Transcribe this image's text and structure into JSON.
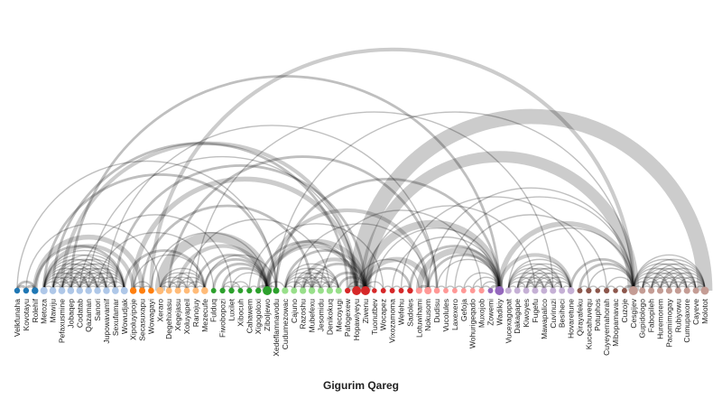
{
  "title": "Gigurim Qareg",
  "colors": {
    "arc": "#000000",
    "label": "#222222"
  },
  "nodes": [
    {
      "label": "Velkfunaha",
      "color": "#1f77b4"
    },
    {
      "label": "Kovotayu",
      "color": "#1f77b4"
    },
    {
      "label": "Rolehif",
      "color": "#1f77b4"
    },
    {
      "label": "Metoza",
      "color": "#aec7e8"
    },
    {
      "label": "Mawiju",
      "color": "#aec7e8"
    },
    {
      "label": "Pefaxusmine",
      "color": "#aec7e8"
    },
    {
      "label": "Jobaqep",
      "color": "#aec7e8"
    },
    {
      "label": "Codatab",
      "color": "#aec7e8"
    },
    {
      "label": "Qazaman",
      "color": "#aec7e8"
    },
    {
      "label": "Sanori",
      "color": "#aec7e8"
    },
    {
      "label": "Jupowavamif",
      "color": "#aec7e8"
    },
    {
      "label": "Sexufamar",
      "color": "#aec7e8"
    },
    {
      "label": "Wowudjak",
      "color": "#aec7e8"
    },
    {
      "label": "Xipoluyipoje",
      "color": "#ff7f0e"
    },
    {
      "label": "Secasuxapu",
      "color": "#ff7f0e"
    },
    {
      "label": "Wowagayi",
      "color": "#ff7f0e"
    },
    {
      "label": "Xeraro",
      "color": "#ffbb78"
    },
    {
      "label": "Degehixasu",
      "color": "#ffbb78"
    },
    {
      "label": "Xegejasu",
      "color": "#ffbb78"
    },
    {
      "label": "Xoluyapeil",
      "color": "#ffbb78"
    },
    {
      "label": "Ranojuy",
      "color": "#ffbb78"
    },
    {
      "label": "Mezecufe",
      "color": "#ffbb78"
    },
    {
      "label": "Fulduq",
      "color": "#2ca02c"
    },
    {
      "label": "Fiwobopozi",
      "color": "#2ca02c"
    },
    {
      "label": "Luxilet",
      "color": "#2ca02c"
    },
    {
      "label": "Xibocuh",
      "color": "#2ca02c"
    },
    {
      "label": "Cahawem",
      "color": "#2ca02c"
    },
    {
      "label": "Xigogoloxi",
      "color": "#2ca02c"
    },
    {
      "label": "Ziboljewo",
      "color": "#2ca02c"
    },
    {
      "label": "Xedeflamnavodu",
      "color": "#2ca02c"
    },
    {
      "label": "Cudumezowac",
      "color": "#98df8a"
    },
    {
      "label": "Cajuno",
      "color": "#98df8a"
    },
    {
      "label": "Razoshu",
      "color": "#98df8a"
    },
    {
      "label": "Mubefexu",
      "color": "#98df8a"
    },
    {
      "label": "Jesomidu",
      "color": "#98df8a"
    },
    {
      "label": "Denikokuq",
      "color": "#98df8a"
    },
    {
      "label": "Mecoyugi",
      "color": "#98df8a"
    },
    {
      "label": "Pafogexew",
      "color": "#d62728"
    },
    {
      "label": "Hopawiyeyu",
      "color": "#d62728"
    },
    {
      "label": "Ziwenu",
      "color": "#d62728"
    },
    {
      "label": "Tuonutbev",
      "color": "#d62728"
    },
    {
      "label": "Wocapez",
      "color": "#d62728"
    },
    {
      "label": "Vixozamoma",
      "color": "#d62728"
    },
    {
      "label": "Wefehu",
      "color": "#d62728"
    },
    {
      "label": "Sadoles",
      "color": "#d62728"
    },
    {
      "label": "Lotuwihami",
      "color": "#ff9896"
    },
    {
      "label": "Nokusom",
      "color": "#ff9896"
    },
    {
      "label": "Dudisu",
      "color": "#ff9896"
    },
    {
      "label": "Vucolules",
      "color": "#ff9896"
    },
    {
      "label": "Laxexero",
      "color": "#ff9896"
    },
    {
      "label": "Gefoja",
      "color": "#ff9896"
    },
    {
      "label": "Wohurigeqado",
      "color": "#ff9896"
    },
    {
      "label": "Muxojob",
      "color": "#ff9896"
    },
    {
      "label": "Zowemi",
      "color": "#9467bd"
    },
    {
      "label": "Wadikiy",
      "color": "#9467bd"
    },
    {
      "label": "Vucexagopat",
      "color": "#c5b0d5"
    },
    {
      "label": "Dakagape",
      "color": "#c5b0d5"
    },
    {
      "label": "Kiwoyes",
      "color": "#c5b0d5"
    },
    {
      "label": "Fugefu",
      "color": "#c5b0d5"
    },
    {
      "label": "Mawapalico",
      "color": "#c5b0d5"
    },
    {
      "label": "Cuvinuzi",
      "color": "#c5b0d5"
    },
    {
      "label": "Besiheci",
      "color": "#c5b0d5"
    },
    {
      "label": "Hovaretune",
      "color": "#c5b0d5"
    },
    {
      "label": "Qirayafeku",
      "color": "#8c564b"
    },
    {
      "label": "Kucecahuvequ",
      "color": "#8c564b"
    },
    {
      "label": "Potuphos",
      "color": "#8c564b"
    },
    {
      "label": "Cuyeyernahorah",
      "color": "#8c564b"
    },
    {
      "label": "Mibopamavac",
      "color": "#8c564b"
    },
    {
      "label": "Cuzoje",
      "color": "#8c564b"
    },
    {
      "label": "Cesgijev",
      "color": "#c49c94"
    },
    {
      "label": "Gupidologo",
      "color": "#c49c94"
    },
    {
      "label": "Fabopileh",
      "color": "#c49c94"
    },
    {
      "label": "Huremorem",
      "color": "#c49c94"
    },
    {
      "label": "Pacomimogay",
      "color": "#c49c94"
    },
    {
      "label": "Rubiyowu",
      "color": "#c49c94"
    },
    {
      "label": "Cumupaxore",
      "color": "#c49c94"
    },
    {
      "label": "Cayeve",
      "color": "#c49c94"
    },
    {
      "label": "Molotot",
      "color": "#c49c94"
    }
  ],
  "links": [
    [
      0,
      1,
      2
    ],
    [
      0,
      2,
      2
    ],
    [
      1,
      2,
      2
    ],
    [
      3,
      4,
      1
    ],
    [
      3,
      5,
      1
    ],
    [
      3,
      6,
      1
    ],
    [
      3,
      7,
      1
    ],
    [
      3,
      8,
      1
    ],
    [
      3,
      9,
      1
    ],
    [
      3,
      10,
      1
    ],
    [
      3,
      11,
      1
    ],
    [
      3,
      12,
      1
    ],
    [
      4,
      5,
      1
    ],
    [
      4,
      6,
      1
    ],
    [
      4,
      7,
      1
    ],
    [
      4,
      8,
      1
    ],
    [
      4,
      9,
      1
    ],
    [
      4,
      10,
      1
    ],
    [
      4,
      11,
      1
    ],
    [
      4,
      12,
      1
    ],
    [
      5,
      6,
      1
    ],
    [
      5,
      7,
      1
    ],
    [
      5,
      8,
      1
    ],
    [
      5,
      9,
      1
    ],
    [
      5,
      10,
      1
    ],
    [
      5,
      11,
      1
    ],
    [
      5,
      12,
      1
    ],
    [
      6,
      7,
      1
    ],
    [
      6,
      8,
      1
    ],
    [
      6,
      9,
      1
    ],
    [
      6,
      10,
      1
    ],
    [
      6,
      11,
      1
    ],
    [
      6,
      12,
      1
    ],
    [
      7,
      8,
      1
    ],
    [
      7,
      9,
      1
    ],
    [
      7,
      10,
      1
    ],
    [
      7,
      11,
      1
    ],
    [
      7,
      12,
      1
    ],
    [
      8,
      9,
      1
    ],
    [
      8,
      10,
      1
    ],
    [
      8,
      11,
      1
    ],
    [
      8,
      12,
      1
    ],
    [
      9,
      10,
      1
    ],
    [
      9,
      11,
      1
    ],
    [
      9,
      12,
      1
    ],
    [
      10,
      11,
      1
    ],
    [
      10,
      12,
      1
    ],
    [
      11,
      12,
      1
    ],
    [
      13,
      14,
      1
    ],
    [
      13,
      15,
      1
    ],
    [
      14,
      15,
      1
    ],
    [
      16,
      17,
      1
    ],
    [
      16,
      18,
      1
    ],
    [
      16,
      19,
      1
    ],
    [
      16,
      20,
      1
    ],
    [
      16,
      21,
      1
    ],
    [
      17,
      18,
      1
    ],
    [
      17,
      19,
      1
    ],
    [
      17,
      20,
      1
    ],
    [
      17,
      21,
      1
    ],
    [
      18,
      19,
      1
    ],
    [
      18,
      20,
      1
    ],
    [
      18,
      21,
      1
    ],
    [
      19,
      20,
      1
    ],
    [
      19,
      21,
      1
    ],
    [
      20,
      21,
      1
    ],
    [
      23,
      24,
      1
    ],
    [
      23,
      25,
      1
    ],
    [
      24,
      25,
      1
    ],
    [
      24,
      26,
      1
    ],
    [
      25,
      26,
      1
    ],
    [
      26,
      27,
      1
    ],
    [
      27,
      28,
      2
    ],
    [
      28,
      29,
      1
    ],
    [
      30,
      31,
      1
    ],
    [
      30,
      32,
      1
    ],
    [
      30,
      33,
      1
    ],
    [
      30,
      34,
      1
    ],
    [
      30,
      35,
      1
    ],
    [
      30,
      36,
      1
    ],
    [
      31,
      32,
      1
    ],
    [
      31,
      33,
      1
    ],
    [
      31,
      34,
      1
    ],
    [
      31,
      35,
      1
    ],
    [
      31,
      36,
      1
    ],
    [
      32,
      33,
      1
    ],
    [
      32,
      34,
      1
    ],
    [
      32,
      35,
      1
    ],
    [
      32,
      36,
      1
    ],
    [
      33,
      34,
      1
    ],
    [
      33,
      35,
      1
    ],
    [
      33,
      36,
      1
    ],
    [
      34,
      35,
      1
    ],
    [
      34,
      36,
      1
    ],
    [
      35,
      36,
      1
    ],
    [
      37,
      38,
      1
    ],
    [
      38,
      39,
      2
    ],
    [
      39,
      40,
      1
    ],
    [
      39,
      41,
      1
    ],
    [
      41,
      42,
      1
    ],
    [
      42,
      43,
      1
    ],
    [
      43,
      44,
      1
    ],
    [
      45,
      46,
      2
    ],
    [
      46,
      47,
      1
    ],
    [
      47,
      48,
      1
    ],
    [
      48,
      49,
      1
    ],
    [
      49,
      50,
      1
    ],
    [
      50,
      51,
      1
    ],
    [
      51,
      52,
      1
    ],
    [
      52,
      53,
      1
    ],
    [
      53,
      54,
      2
    ],
    [
      55,
      56,
      1
    ],
    [
      55,
      57,
      1
    ],
    [
      55,
      58,
      1
    ],
    [
      55,
      59,
      1
    ],
    [
      55,
      60,
      1
    ],
    [
      55,
      61,
      1
    ],
    [
      55,
      62,
      1
    ],
    [
      56,
      57,
      1
    ],
    [
      56,
      58,
      1
    ],
    [
      56,
      59,
      1
    ],
    [
      56,
      60,
      1
    ],
    [
      56,
      61,
      1
    ],
    [
      56,
      62,
      1
    ],
    [
      57,
      58,
      1
    ],
    [
      57,
      59,
      1
    ],
    [
      57,
      60,
      1
    ],
    [
      57,
      61,
      1
    ],
    [
      57,
      62,
      1
    ],
    [
      58,
      59,
      1
    ],
    [
      58,
      60,
      1
    ],
    [
      58,
      61,
      1
    ],
    [
      58,
      62,
      1
    ],
    [
      59,
      60,
      1
    ],
    [
      59,
      61,
      1
    ],
    [
      59,
      62,
      1
    ],
    [
      60,
      61,
      1
    ],
    [
      60,
      62,
      1
    ],
    [
      61,
      62,
      1
    ],
    [
      63,
      64,
      1
    ],
    [
      64,
      65,
      1
    ],
    [
      65,
      66,
      1
    ],
    [
      66,
      67,
      1
    ],
    [
      67,
      68,
      1
    ],
    [
      68,
      69,
      2
    ],
    [
      69,
      70,
      1
    ],
    [
      69,
      71,
      1
    ],
    [
      69,
      72,
      1
    ],
    [
      69,
      73,
      1
    ],
    [
      69,
      74,
      1
    ],
    [
      69,
      75,
      1
    ],
    [
      69,
      76,
      1
    ],
    [
      69,
      77,
      1
    ],
    [
      70,
      71,
      1
    ],
    [
      70,
      72,
      1
    ],
    [
      70,
      73,
      1
    ],
    [
      70,
      74,
      1
    ],
    [
      70,
      75,
      1
    ],
    [
      70,
      76,
      1
    ],
    [
      70,
      77,
      1
    ],
    [
      71,
      72,
      1
    ],
    [
      71,
      73,
      1
    ],
    [
      71,
      74,
      1
    ],
    [
      71,
      75,
      1
    ],
    [
      71,
      76,
      1
    ],
    [
      71,
      77,
      1
    ],
    [
      72,
      73,
      1
    ],
    [
      72,
      74,
      1
    ],
    [
      72,
      75,
      1
    ],
    [
      72,
      76,
      1
    ],
    [
      72,
      77,
      1
    ],
    [
      73,
      74,
      1
    ],
    [
      73,
      75,
      1
    ],
    [
      73,
      76,
      1
    ],
    [
      73,
      77,
      1
    ],
    [
      74,
      75,
      1
    ],
    [
      74,
      76,
      1
    ],
    [
      74,
      77,
      1
    ],
    [
      75,
      76,
      1
    ],
    [
      75,
      77,
      1
    ],
    [
      76,
      77,
      1
    ],
    [
      2,
      12,
      2
    ],
    [
      3,
      13,
      3
    ],
    [
      2,
      14,
      4
    ],
    [
      1,
      16,
      1
    ],
    [
      0,
      29,
      1
    ],
    [
      3,
      29,
      2
    ],
    [
      4,
      37,
      2
    ],
    [
      5,
      38,
      3
    ],
    [
      8,
      38,
      1
    ],
    [
      12,
      21,
      2
    ],
    [
      13,
      38,
      4
    ],
    [
      13,
      21,
      1
    ],
    [
      15,
      28,
      1
    ],
    [
      16,
      28,
      8
    ],
    [
      18,
      28,
      3
    ],
    [
      20,
      28,
      2
    ],
    [
      21,
      28,
      2
    ],
    [
      21,
      29,
      1
    ],
    [
      22,
      28,
      2
    ],
    [
      23,
      28,
      2
    ],
    [
      24,
      28,
      1
    ],
    [
      27,
      38,
      2
    ],
    [
      28,
      38,
      3
    ],
    [
      28,
      39,
      4
    ],
    [
      28,
      30,
      1
    ],
    [
      28,
      46,
      3
    ],
    [
      29,
      54,
      2
    ],
    [
      29,
      69,
      1
    ],
    [
      30,
      39,
      2
    ],
    [
      31,
      46,
      1
    ],
    [
      32,
      39,
      3
    ],
    [
      33,
      39,
      2
    ],
    [
      35,
      39,
      2
    ],
    [
      36,
      39,
      2
    ],
    [
      37,
      39,
      1
    ],
    [
      38,
      45,
      1
    ],
    [
      39,
      54,
      6
    ],
    [
      39,
      44,
      2
    ],
    [
      39,
      46,
      4
    ],
    [
      39,
      69,
      9
    ],
    [
      39,
      58,
      1
    ],
    [
      40,
      54,
      1
    ],
    [
      42,
      54,
      1
    ],
    [
      44,
      54,
      2
    ],
    [
      45,
      54,
      5
    ],
    [
      46,
      54,
      2
    ],
    [
      46,
      69,
      1
    ],
    [
      47,
      54,
      1
    ],
    [
      48,
      69,
      1
    ],
    [
      50,
      54,
      1
    ],
    [
      51,
      54,
      1
    ],
    [
      52,
      54,
      1
    ],
    [
      54,
      69,
      4
    ],
    [
      54,
      62,
      3
    ],
    [
      55,
      69,
      1
    ],
    [
      62,
      69,
      2
    ],
    [
      63,
      69,
      2
    ],
    [
      64,
      69,
      1
    ],
    [
      66,
      69,
      1
    ],
    [
      38,
      77,
      12
    ],
    [
      15,
      69,
      3
    ],
    [
      6,
      54,
      2
    ],
    [
      10,
      47,
      1
    ],
    [
      11,
      39,
      2
    ],
    [
      7,
      24,
      1
    ],
    [
      9,
      22,
      1
    ],
    [
      14,
      33,
      2
    ],
    [
      19,
      35,
      1
    ],
    [
      26,
      41,
      1
    ],
    [
      34,
      52,
      1
    ],
    [
      43,
      64,
      1
    ],
    [
      49,
      66,
      1
    ],
    [
      17,
      47,
      2
    ],
    [
      20,
      60,
      1
    ]
  ]
}
